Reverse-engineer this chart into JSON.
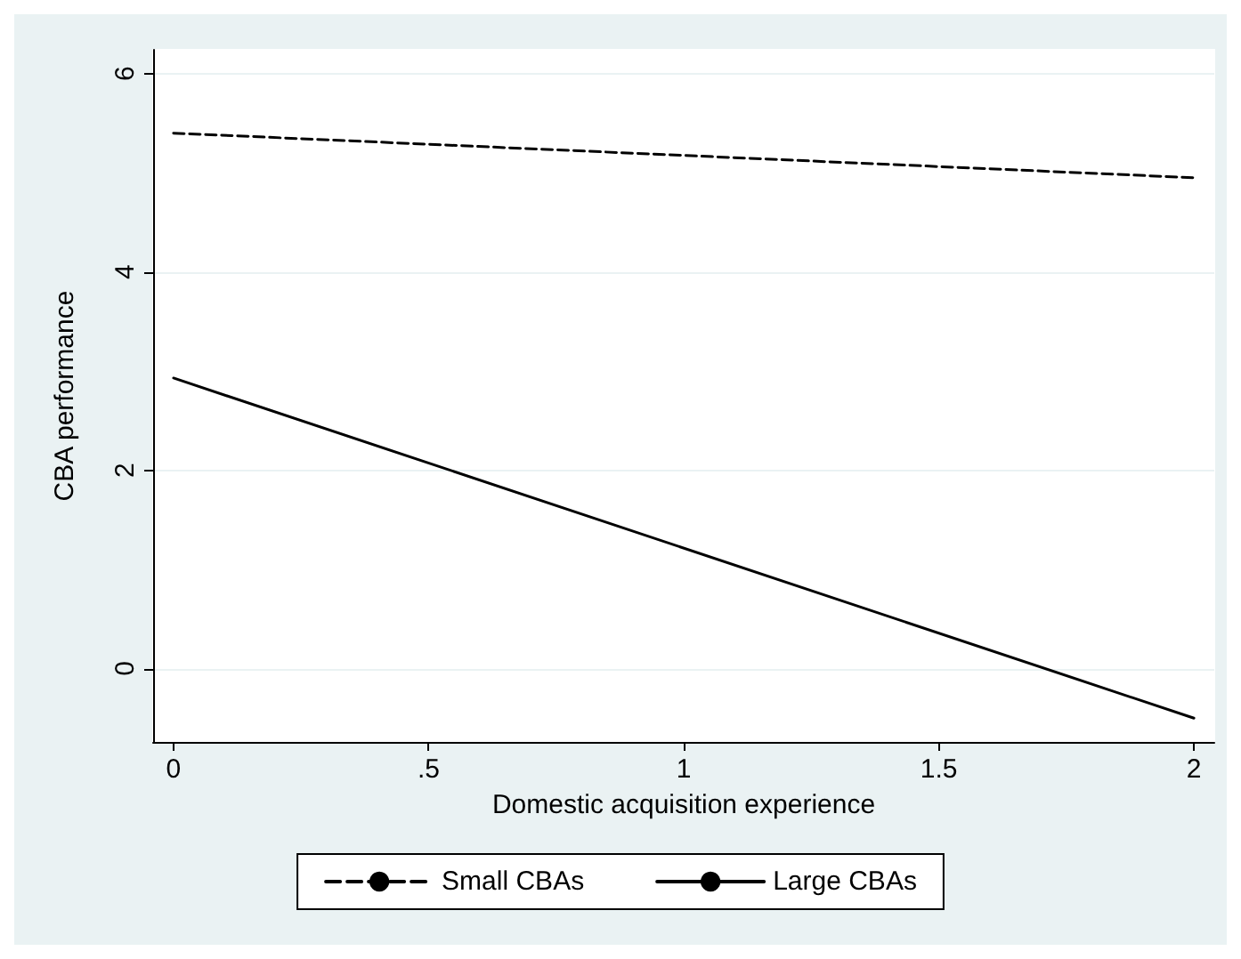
{
  "chart_data": {
    "type": "line",
    "xlabel": "Domestic acquisition experience",
    "ylabel": "CBA performance",
    "x": [
      0,
      2
    ],
    "series": [
      {
        "name": "Small CBAs",
        "color": "#000000",
        "line_style": "dashed",
        "values": [
          5.4,
          4.95
        ]
      },
      {
        "name": "Large CBAs",
        "color": "#000000",
        "line_style": "solid",
        "values": [
          2.93,
          -0.5
        ]
      }
    ],
    "xlim": [
      -0.04,
      2.04
    ],
    "xticks": [
      0,
      {
        "value": 0.5,
        "label": ".5"
      },
      1,
      {
        "value": 1.5,
        "label": "1.5"
      },
      2
    ],
    "ylim": [
      -0.74,
      6.24
    ],
    "yticks": [
      0,
      2,
      4,
      6
    ],
    "grid": "y",
    "legend": "bottom",
    "marker": "none"
  }
}
